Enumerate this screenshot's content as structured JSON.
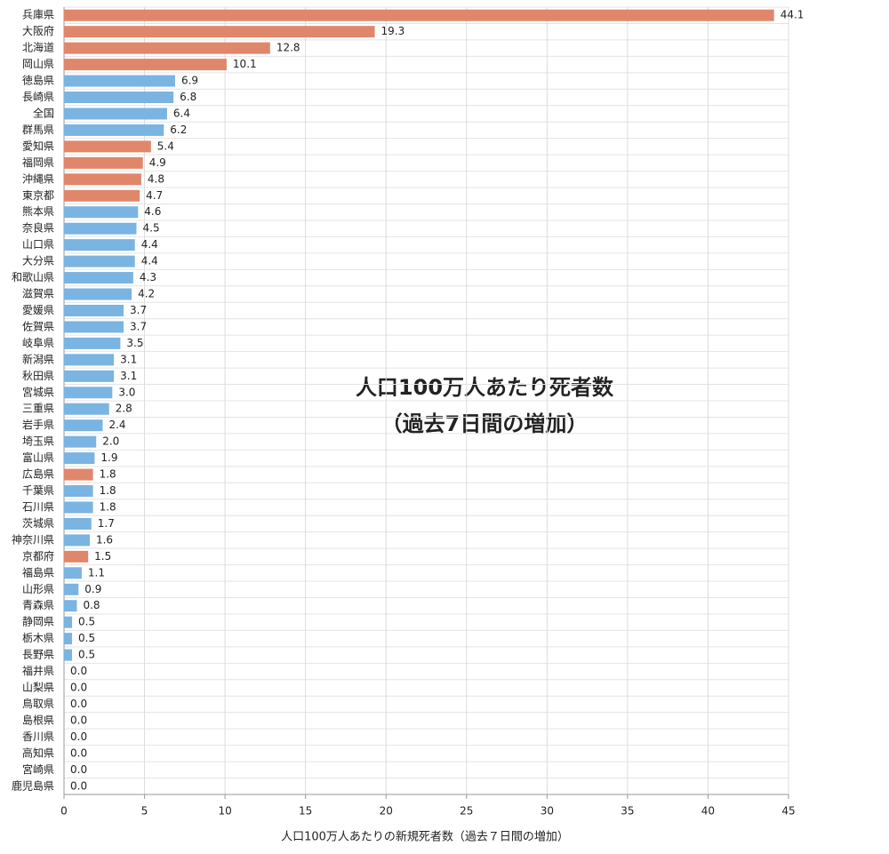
{
  "chart_data": {
    "type": "hbar",
    "title": "人口100万人あたり死者数",
    "subtitle": "（過去7日間の増加）",
    "x_label": "人口100万人あたりの新規死者数（過去７日間の増加）",
    "categories": [
      "兵庫県",
      "大阪府",
      "北海道",
      "岡山県",
      "徳島県",
      "長崎県",
      "全国",
      "群馬県",
      "愛知県",
      "福岡県",
      "沖縄県",
      "東京都",
      "熊本県",
      "奈良県",
      "山口県",
      "大分県",
      "和歌山県",
      "滋賀県",
      "愛媛県",
      "佐賀県",
      "岐阜県",
      "新潟県",
      "秋田県",
      "宮城県",
      "三重県",
      "岩手県",
      "埼玉県",
      "富山県",
      "広島県",
      "千葉県",
      "石川県",
      "茨城県",
      "神奈川県",
      "京都府",
      "福島県",
      "山形県",
      "青森県",
      "静岡県",
      "栃木県",
      "長野県",
      "福井県",
      "山梨県",
      "鳥取県",
      "島根県",
      "香川県",
      "高知県",
      "宮崎県",
      "鹿児島県"
    ],
    "values": [
      44.1,
      19.3,
      12.8,
      10.1,
      6.9,
      6.8,
      6.4,
      6.2,
      5.4,
      4.9,
      4.8,
      4.7,
      4.6,
      4.5,
      4.4,
      4.4,
      4.3,
      4.2,
      3.7,
      3.7,
      3.5,
      3.1,
      3.1,
      3.0,
      2.8,
      2.4,
      2.0,
      1.9,
      1.8,
      1.8,
      1.8,
      1.7,
      1.6,
      1.5,
      1.1,
      0.9,
      0.8,
      0.5,
      0.5,
      0.5,
      0,
      0,
      0,
      0,
      0,
      0,
      0,
      0
    ],
    "value_labels": [
      "44.1",
      "19.3",
      "12.8",
      "10.1",
      "6.9",
      "6.8",
      "6.4",
      "6.2",
      "5.4",
      "4.9",
      "4.8",
      "4.7",
      "4.6",
      "4.5",
      "4.4",
      "4.4",
      "4.3",
      "4.2",
      "3.7",
      "3.7",
      "3.5",
      "3.1",
      "3.1",
      "3.0",
      "2.8",
      "2.4",
      "2.0",
      "1.9",
      "1.8",
      "1.8",
      "1.8",
      "1.7",
      "1.6",
      "1.5",
      "1.1",
      "0.9",
      "0.8",
      "0.5",
      "0.5",
      "0.5",
      "0.0",
      "0.0",
      "0.0",
      "0.0",
      "0.0",
      "0.0",
      "0.0",
      "0.0"
    ],
    "colors": [
      "#e0876b",
      "#e0876b",
      "#e0876b",
      "#e0876b",
      "#7ab4e2",
      "#7ab4e2",
      "#7ab4e2",
      "#7ab4e2",
      "#e0876b",
      "#e0876b",
      "#e0876b",
      "#e0876b",
      "#7ab4e2",
      "#7ab4e2",
      "#7ab4e2",
      "#7ab4e2",
      "#7ab4e2",
      "#7ab4e2",
      "#7ab4e2",
      "#7ab4e2",
      "#7ab4e2",
      "#7ab4e2",
      "#7ab4e2",
      "#7ab4e2",
      "#7ab4e2",
      "#7ab4e2",
      "#7ab4e2",
      "#7ab4e2",
      "#e0876b",
      "#7ab4e2",
      "#7ab4e2",
      "#7ab4e2",
      "#7ab4e2",
      "#e0876b",
      "#7ab4e2",
      "#7ab4e2",
      "#7ab4e2",
      "#7ab4e2",
      "#7ab4e2",
      "#7ab4e2",
      "#7ab4e2",
      "#7ab4e2",
      "#7ab4e2",
      "#7ab4e2",
      "#7ab4e2",
      "#7ab4e2",
      "#7ab4e2",
      "#7ab4e2"
    ],
    "xlim": [
      0,
      45
    ],
    "xticks": [
      0,
      5,
      10,
      15,
      20,
      25,
      30,
      35,
      40,
      45
    ],
    "grid": true
  }
}
